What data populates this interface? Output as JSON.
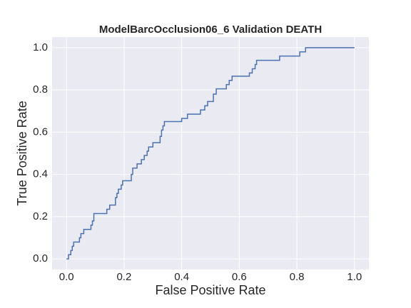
{
  "chart_data": {
    "type": "line",
    "title": "ModelBarcOcclusion06_6 Validation DEATH",
    "xlabel": "False Positive Rate",
    "ylabel": "True Positive Rate",
    "x": [
      0,
      0.007,
      0.007,
      0.015,
      0.015,
      0.02,
      0.02,
      0.025,
      0.025,
      0.045,
      0.045,
      0.05,
      0.05,
      0.06,
      0.06,
      0.085,
      0.085,
      0.09,
      0.09,
      0.095,
      0.095,
      0.14,
      0.14,
      0.15,
      0.15,
      0.17,
      0.17,
      0.175,
      0.175,
      0.18,
      0.18,
      0.19,
      0.19,
      0.195,
      0.195,
      0.225,
      0.225,
      0.23,
      0.23,
      0.245,
      0.245,
      0.26,
      0.26,
      0.27,
      0.27,
      0.28,
      0.28,
      0.285,
      0.285,
      0.3,
      0.3,
      0.325,
      0.325,
      0.33,
      0.33,
      0.335,
      0.335,
      0.34,
      0.34,
      0.4,
      0.4,
      0.42,
      0.42,
      0.465,
      0.465,
      0.48,
      0.48,
      0.49,
      0.49,
      0.51,
      0.51,
      0.52,
      0.52,
      0.555,
      0.555,
      0.565,
      0.565,
      0.575,
      0.575,
      0.635,
      0.635,
      0.645,
      0.645,
      0.655,
      0.655,
      0.66,
      0.66,
      0.74,
      0.74,
      0.81,
      0.81,
      0.83,
      0.83,
      1.0
    ],
    "series": [
      {
        "color": "#4c72b0",
        "values": [
          0,
          0,
          0.02,
          0.02,
          0.04,
          0.04,
          0.06,
          0.06,
          0.08,
          0.08,
          0.1,
          0.1,
          0.12,
          0.12,
          0.14,
          0.14,
          0.16,
          0.16,
          0.18,
          0.18,
          0.215,
          0.215,
          0.235,
          0.235,
          0.255,
          0.255,
          0.29,
          0.29,
          0.31,
          0.31,
          0.33,
          0.33,
          0.35,
          0.35,
          0.37,
          0.37,
          0.4,
          0.4,
          0.43,
          0.43,
          0.45,
          0.45,
          0.47,
          0.47,
          0.49,
          0.49,
          0.51,
          0.51,
          0.53,
          0.53,
          0.55,
          0.55,
          0.58,
          0.58,
          0.61,
          0.61,
          0.63,
          0.63,
          0.65,
          0.65,
          0.665,
          0.665,
          0.685,
          0.685,
          0.705,
          0.705,
          0.725,
          0.725,
          0.745,
          0.745,
          0.78,
          0.78,
          0.805,
          0.805,
          0.825,
          0.825,
          0.845,
          0.845,
          0.865,
          0.865,
          0.88,
          0.88,
          0.9,
          0.9,
          0.92,
          0.92,
          0.94,
          0.94,
          0.96,
          0.96,
          0.98,
          0.98,
          1.0,
          1.0
        ]
      }
    ],
    "xlim": [
      -0.05,
      1.05
    ],
    "ylim": [
      -0.05,
      1.05
    ],
    "xticks": [
      {
        "value": 0,
        "label": "0.0"
      },
      0.2,
      0.4,
      0.6,
      0.8,
      {
        "value": 1,
        "label": "1.0"
      }
    ],
    "yticks": [
      {
        "value": 0,
        "label": "0.0"
      },
      0.2,
      0.4,
      0.6,
      0.8,
      {
        "value": 1,
        "label": "1.0"
      }
    ],
    "grid": true
  }
}
